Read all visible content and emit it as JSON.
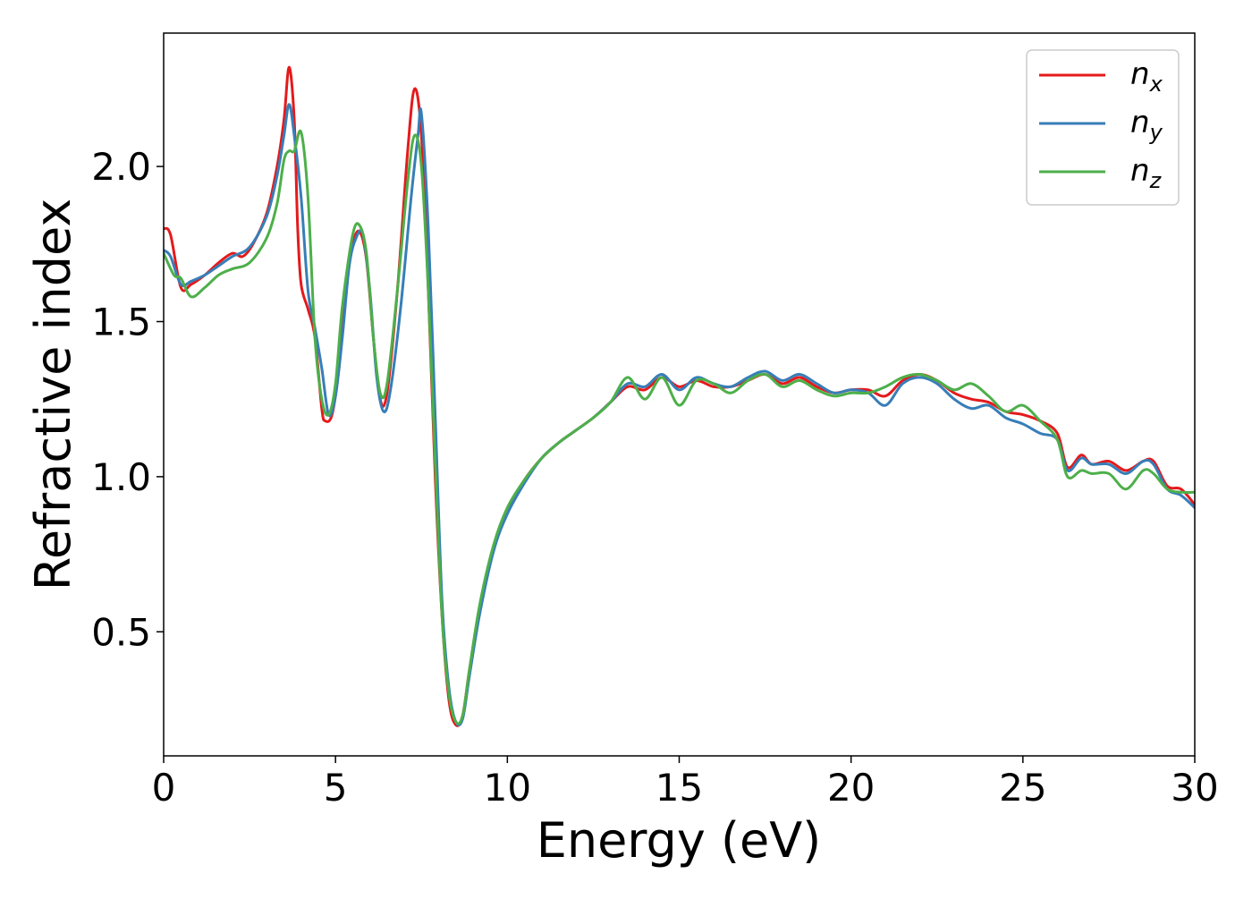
{
  "chart_data": {
    "type": "line",
    "title": "",
    "xlabel": "Energy (eV)",
    "ylabel": "Refractive index",
    "xlim": [
      0,
      30
    ],
    "ylim": [
      0.1,
      2.43
    ],
    "xticks": [
      0,
      5,
      10,
      15,
      20,
      25,
      30
    ],
    "xtick_labels": [
      "0",
      "5",
      "10",
      "15",
      "20",
      "25",
      "30"
    ],
    "yticks": [
      0.5,
      1.0,
      1.5,
      2.0
    ],
    "ytick_labels": [
      "0.5",
      "1.0",
      "1.5",
      "2.0"
    ],
    "grid": false,
    "legend_position": "top-right",
    "series": [
      {
        "name": "n_x",
        "label_base": "n",
        "label_sub": "x",
        "color": "#e41a1c",
        "points": [
          [
            0,
            1.8
          ],
          [
            0.2,
            1.78
          ],
          [
            0.5,
            1.61
          ],
          [
            0.8,
            1.62
          ],
          [
            1.2,
            1.65
          ],
          [
            1.6,
            1.69
          ],
          [
            2.0,
            1.72
          ],
          [
            2.3,
            1.71
          ],
          [
            2.6,
            1.75
          ],
          [
            3.0,
            1.85
          ],
          [
            3.3,
            2.0
          ],
          [
            3.5,
            2.15
          ],
          [
            3.65,
            2.32
          ],
          [
            3.8,
            2.15
          ],
          [
            3.9,
            1.8
          ],
          [
            4.0,
            1.62
          ],
          [
            4.2,
            1.54
          ],
          [
            4.4,
            1.45
          ],
          [
            4.6,
            1.22
          ],
          [
            4.7,
            1.18
          ],
          [
            4.9,
            1.2
          ],
          [
            5.1,
            1.35
          ],
          [
            5.3,
            1.6
          ],
          [
            5.5,
            1.75
          ],
          [
            5.7,
            1.79
          ],
          [
            5.9,
            1.7
          ],
          [
            6.1,
            1.45
          ],
          [
            6.3,
            1.25
          ],
          [
            6.5,
            1.27
          ],
          [
            6.8,
            1.6
          ],
          [
            7.1,
            2.05
          ],
          [
            7.3,
            2.25
          ],
          [
            7.5,
            2.1
          ],
          [
            7.7,
            1.6
          ],
          [
            7.9,
            1.0
          ],
          [
            8.1,
            0.55
          ],
          [
            8.3,
            0.28
          ],
          [
            8.5,
            0.2
          ],
          [
            8.7,
            0.23
          ],
          [
            8.9,
            0.38
          ],
          [
            9.2,
            0.58
          ],
          [
            9.6,
            0.77
          ],
          [
            10.0,
            0.89
          ],
          [
            10.5,
            0.99
          ],
          [
            11.0,
            1.06
          ],
          [
            11.5,
            1.11
          ],
          [
            12.0,
            1.15
          ],
          [
            12.5,
            1.19
          ],
          [
            13.0,
            1.24
          ],
          [
            13.5,
            1.29
          ],
          [
            14.0,
            1.28
          ],
          [
            14.5,
            1.32
          ],
          [
            15.0,
            1.29
          ],
          [
            15.5,
            1.31
          ],
          [
            16.0,
            1.29
          ],
          [
            16.5,
            1.29
          ],
          [
            17.0,
            1.31
          ],
          [
            17.5,
            1.33
          ],
          [
            18.0,
            1.3
          ],
          [
            18.5,
            1.32
          ],
          [
            19.0,
            1.29
          ],
          [
            19.5,
            1.27
          ],
          [
            20.0,
            1.28
          ],
          [
            20.5,
            1.28
          ],
          [
            21.0,
            1.26
          ],
          [
            21.5,
            1.31
          ],
          [
            22.0,
            1.33
          ],
          [
            22.5,
            1.31
          ],
          [
            23.0,
            1.27
          ],
          [
            23.5,
            1.25
          ],
          [
            24.0,
            1.24
          ],
          [
            24.5,
            1.21
          ],
          [
            25.0,
            1.2
          ],
          [
            25.5,
            1.18
          ],
          [
            26.0,
            1.14
          ],
          [
            26.3,
            1.03
          ],
          [
            26.7,
            1.07
          ],
          [
            27.0,
            1.04
          ],
          [
            27.5,
            1.05
          ],
          [
            28.0,
            1.02
          ],
          [
            28.5,
            1.05
          ],
          [
            28.8,
            1.05
          ],
          [
            29.2,
            0.97
          ],
          [
            29.6,
            0.96
          ],
          [
            30.0,
            0.91
          ]
        ]
      },
      {
        "name": "n_y",
        "label_base": "n",
        "label_sub": "y",
        "color": "#377eb8",
        "points": [
          [
            0,
            1.73
          ],
          [
            0.2,
            1.71
          ],
          [
            0.5,
            1.62
          ],
          [
            0.8,
            1.63
          ],
          [
            1.2,
            1.65
          ],
          [
            1.6,
            1.68
          ],
          [
            2.0,
            1.71
          ],
          [
            2.5,
            1.74
          ],
          [
            3.0,
            1.84
          ],
          [
            3.3,
            1.97
          ],
          [
            3.5,
            2.1
          ],
          [
            3.65,
            2.2
          ],
          [
            3.8,
            2.1
          ],
          [
            4.0,
            1.9
          ],
          [
            4.2,
            1.6
          ],
          [
            4.4,
            1.48
          ],
          [
            4.6,
            1.35
          ],
          [
            4.8,
            1.2
          ],
          [
            5.0,
            1.26
          ],
          [
            5.2,
            1.45
          ],
          [
            5.4,
            1.68
          ],
          [
            5.6,
            1.77
          ],
          [
            5.8,
            1.78
          ],
          [
            6.0,
            1.6
          ],
          [
            6.2,
            1.32
          ],
          [
            6.4,
            1.21
          ],
          [
            6.6,
            1.28
          ],
          [
            6.9,
            1.55
          ],
          [
            7.2,
            1.9
          ],
          [
            7.4,
            2.1
          ],
          [
            7.5,
            2.17
          ],
          [
            7.7,
            1.8
          ],
          [
            7.9,
            1.2
          ],
          [
            8.1,
            0.6
          ],
          [
            8.3,
            0.32
          ],
          [
            8.5,
            0.21
          ],
          [
            8.7,
            0.22
          ],
          [
            8.9,
            0.36
          ],
          [
            9.2,
            0.56
          ],
          [
            9.6,
            0.76
          ],
          [
            10.0,
            0.88
          ],
          [
            10.5,
            0.98
          ],
          [
            11.0,
            1.06
          ],
          [
            11.5,
            1.11
          ],
          [
            12.0,
            1.15
          ],
          [
            12.5,
            1.19
          ],
          [
            13.0,
            1.24
          ],
          [
            13.5,
            1.3
          ],
          [
            14.0,
            1.29
          ],
          [
            14.5,
            1.33
          ],
          [
            15.0,
            1.28
          ],
          [
            15.5,
            1.32
          ],
          [
            16.0,
            1.3
          ],
          [
            16.5,
            1.29
          ],
          [
            17.0,
            1.32
          ],
          [
            17.5,
            1.34
          ],
          [
            18.0,
            1.31
          ],
          [
            18.5,
            1.33
          ],
          [
            19.0,
            1.3
          ],
          [
            19.5,
            1.27
          ],
          [
            20.0,
            1.28
          ],
          [
            20.5,
            1.27
          ],
          [
            21.0,
            1.23
          ],
          [
            21.5,
            1.3
          ],
          [
            22.0,
            1.32
          ],
          [
            22.5,
            1.3
          ],
          [
            23.0,
            1.25
          ],
          [
            23.5,
            1.22
          ],
          [
            24.0,
            1.23
          ],
          [
            24.5,
            1.19
          ],
          [
            25.0,
            1.17
          ],
          [
            25.5,
            1.14
          ],
          [
            26.0,
            1.12
          ],
          [
            26.3,
            1.02
          ],
          [
            26.7,
            1.06
          ],
          [
            27.0,
            1.04
          ],
          [
            27.5,
            1.04
          ],
          [
            28.0,
            1.01
          ],
          [
            28.5,
            1.05
          ],
          [
            28.8,
            1.04
          ],
          [
            29.2,
            0.96
          ],
          [
            29.6,
            0.94
          ],
          [
            30.0,
            0.9
          ]
        ]
      },
      {
        "name": "n_z",
        "label_base": "n",
        "label_sub": "z",
        "color": "#4daf4a",
        "points": [
          [
            0,
            1.72
          ],
          [
            0.3,
            1.65
          ],
          [
            0.5,
            1.64
          ],
          [
            0.8,
            1.58
          ],
          [
            1.2,
            1.61
          ],
          [
            1.6,
            1.65
          ],
          [
            2.0,
            1.67
          ],
          [
            2.5,
            1.69
          ],
          [
            3.0,
            1.77
          ],
          [
            3.3,
            1.88
          ],
          [
            3.5,
            2.02
          ],
          [
            3.65,
            2.05
          ],
          [
            3.8,
            2.05
          ],
          [
            4.0,
            2.11
          ],
          [
            4.2,
            1.9
          ],
          [
            4.4,
            1.45
          ],
          [
            4.6,
            1.25
          ],
          [
            4.8,
            1.2
          ],
          [
            5.0,
            1.3
          ],
          [
            5.2,
            1.55
          ],
          [
            5.5,
            1.78
          ],
          [
            5.7,
            1.81
          ],
          [
            5.9,
            1.72
          ],
          [
            6.1,
            1.45
          ],
          [
            6.3,
            1.27
          ],
          [
            6.5,
            1.3
          ],
          [
            6.8,
            1.6
          ],
          [
            7.1,
            1.95
          ],
          [
            7.3,
            2.1
          ],
          [
            7.5,
            2.0
          ],
          [
            7.7,
            1.6
          ],
          [
            7.9,
            1.05
          ],
          [
            8.1,
            0.55
          ],
          [
            8.3,
            0.3
          ],
          [
            8.5,
            0.21
          ],
          [
            8.7,
            0.23
          ],
          [
            8.9,
            0.38
          ],
          [
            9.2,
            0.59
          ],
          [
            9.6,
            0.78
          ],
          [
            10.0,
            0.9
          ],
          [
            10.5,
            0.99
          ],
          [
            11.0,
            1.06
          ],
          [
            11.5,
            1.11
          ],
          [
            12.0,
            1.15
          ],
          [
            12.5,
            1.19
          ],
          [
            13.0,
            1.24
          ],
          [
            13.5,
            1.32
          ],
          [
            14.0,
            1.25
          ],
          [
            14.5,
            1.32
          ],
          [
            15.0,
            1.23
          ],
          [
            15.5,
            1.31
          ],
          [
            16.0,
            1.3
          ],
          [
            16.5,
            1.27
          ],
          [
            17.0,
            1.31
          ],
          [
            17.5,
            1.33
          ],
          [
            18.0,
            1.29
          ],
          [
            18.5,
            1.31
          ],
          [
            19.0,
            1.28
          ],
          [
            19.5,
            1.26
          ],
          [
            20.0,
            1.27
          ],
          [
            20.5,
            1.27
          ],
          [
            21.0,
            1.29
          ],
          [
            21.5,
            1.32
          ],
          [
            22.0,
            1.33
          ],
          [
            22.5,
            1.31
          ],
          [
            23.0,
            1.28
          ],
          [
            23.5,
            1.3
          ],
          [
            24.0,
            1.26
          ],
          [
            24.5,
            1.21
          ],
          [
            25.0,
            1.23
          ],
          [
            25.5,
            1.18
          ],
          [
            26.0,
            1.12
          ],
          [
            26.3,
            1.0
          ],
          [
            26.7,
            1.02
          ],
          [
            27.0,
            1.01
          ],
          [
            27.5,
            1.01
          ],
          [
            28.0,
            0.96
          ],
          [
            28.5,
            1.02
          ],
          [
            28.8,
            1.01
          ],
          [
            29.2,
            0.96
          ],
          [
            29.6,
            0.95
          ],
          [
            30.0,
            0.95
          ]
        ]
      }
    ]
  }
}
